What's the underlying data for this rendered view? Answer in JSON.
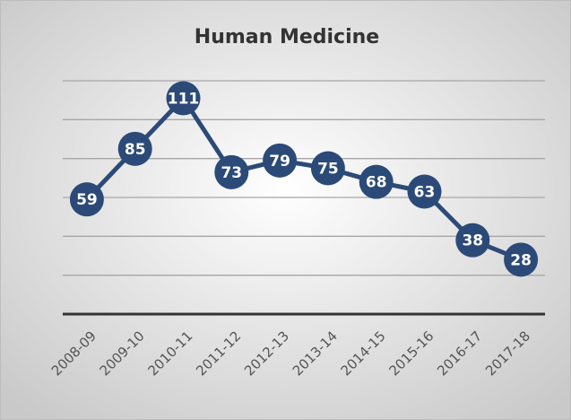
{
  "chart_data": {
    "type": "line",
    "title": "Human Medicine",
    "categories": [
      "2008-09",
      "2009-10",
      "2010-11",
      "2011-12",
      "2012-13",
      "2013-14",
      "2014-15",
      "2015-16",
      "2016-17",
      "2017-18"
    ],
    "values": [
      59,
      85,
      111,
      73,
      79,
      75,
      68,
      63,
      38,
      28
    ],
    "color": "#2c4a78",
    "ylim": [
      0,
      120
    ],
    "yticks": [
      0,
      20,
      40,
      60,
      80,
      100,
      120
    ],
    "grid": true
  }
}
